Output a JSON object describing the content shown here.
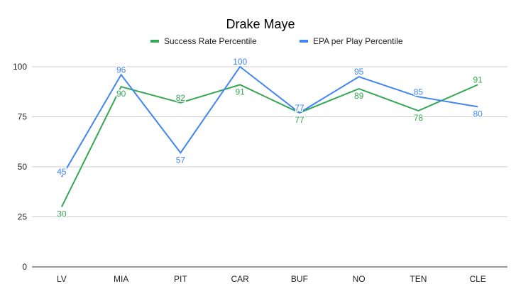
{
  "chart_data": {
    "type": "line",
    "title": "Drake Maye",
    "categories": [
      "LV",
      "MIA",
      "PIT",
      "CAR",
      "BUF",
      "NO",
      "TEN",
      "CLE"
    ],
    "series": [
      {
        "name": "Success Rate Percentile",
        "color": "#34a853",
        "values": [
          30,
          90,
          82,
          91,
          77,
          89,
          78,
          91
        ]
      },
      {
        "name": "EPA per Play Percentile",
        "color": "#4285f4",
        "values": [
          45,
          96,
          57,
          100,
          77,
          95,
          85,
          80
        ]
      }
    ],
    "ylim": [
      0,
      100
    ],
    "yticks": [
      0,
      25,
      50,
      75,
      100
    ],
    "grid": true,
    "legend": "top",
    "xlabel": "",
    "ylabel": ""
  }
}
